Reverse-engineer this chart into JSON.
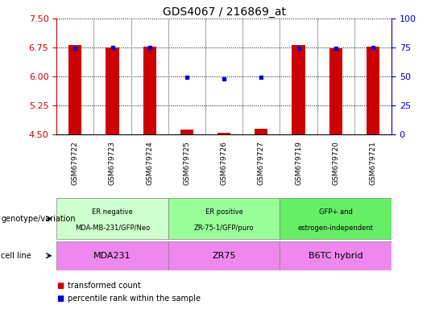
{
  "title": "GDS4067 / 216869_at",
  "samples": [
    "GSM679722",
    "GSM679723",
    "GSM679724",
    "GSM679725",
    "GSM679726",
    "GSM679727",
    "GSM679719",
    "GSM679720",
    "GSM679721"
  ],
  "transformed_count": [
    6.82,
    6.76,
    6.77,
    4.62,
    4.55,
    4.65,
    6.82,
    6.74,
    6.77
  ],
  "percentile_rank": [
    6.73,
    6.75,
    6.75,
    5.97,
    5.94,
    5.97,
    6.73,
    6.74,
    6.75
  ],
  "ylim_left": [
    4.5,
    7.5
  ],
  "ylim_right": [
    0,
    100
  ],
  "yticks_left": [
    4.5,
    5.25,
    6.0,
    6.75,
    7.5
  ],
  "yticks_right": [
    0,
    25,
    50,
    75,
    100
  ],
  "bar_color": "#cc0000",
  "dot_color": "#0000cc",
  "groups": [
    {
      "label": "ER negative\nMDA-MB-231/GFP/Neo",
      "start": 0,
      "end": 3,
      "color": "#ccffcc"
    },
    {
      "label": "ER positive\nZR-75-1/GFP/puro",
      "start": 3,
      "end": 6,
      "color": "#99ff99"
    },
    {
      "label": "GFP+ and\nestrogen-independent",
      "start": 6,
      "end": 9,
      "color": "#66ee66"
    }
  ],
  "cell_lines": [
    {
      "label": "MDA231",
      "start": 0,
      "end": 3,
      "color": "#ee88ee"
    },
    {
      "label": "ZR75",
      "start": 3,
      "end": 6,
      "color": "#ee88ee"
    },
    {
      "label": "B6TC hybrid",
      "start": 6,
      "end": 9,
      "color": "#ee88ee"
    }
  ],
  "genotype_label": "genotype/variation",
  "cellline_label": "cell line",
  "legend_bar": "transformed count",
  "legend_dot": "percentile rank within the sample",
  "bar_width": 0.35,
  "title_color": "#000000",
  "left_axis_color": "#cc0000",
  "right_axis_color": "#0000cc",
  "background_color": "#ffffff",
  "tick_bg_color": "#d8d8d8"
}
